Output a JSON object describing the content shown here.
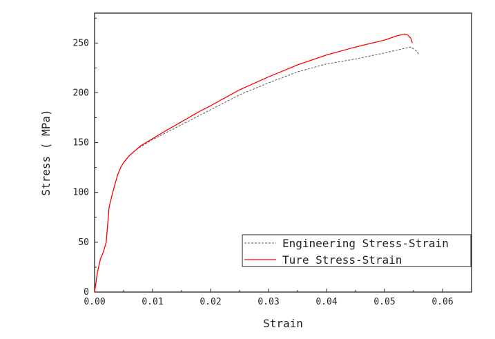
{
  "chart_data": {
    "type": "line",
    "xlabel": "Strain",
    "ylabel": "Stress ( MPa)",
    "xlim": [
      0,
      0.065
    ],
    "ylim": [
      0,
      280
    ],
    "xticks": [
      "0.00",
      "0.01",
      "0.02",
      "0.03",
      "0.04",
      "0.05",
      "0.06"
    ],
    "yticks": [
      "0",
      "50",
      "100",
      "150",
      "200",
      "250"
    ],
    "grid": false,
    "legend_position": "bottom-right",
    "series": [
      {
        "name": "Engineering Stress-Strain",
        "color": "#555555",
        "style": "dashed",
        "x": [
          0,
          0.0005,
          0.001,
          0.0015,
          0.002,
          0.0025,
          0.003,
          0.0035,
          0.004,
          0.0045,
          0.005,
          0.006,
          0.007,
          0.008,
          0.01,
          0.012,
          0.015,
          0.018,
          0.02,
          0.025,
          0.03,
          0.035,
          0.04,
          0.045,
          0.05,
          0.053,
          0.0545,
          0.0555,
          0.056
        ],
        "y": [
          0,
          20,
          33,
          40,
          50,
          85,
          97,
          108,
          118,
          125,
          130,
          137,
          142,
          146,
          153,
          159,
          168,
          177,
          183,
          198,
          210,
          221,
          229,
          234,
          240,
          244,
          246,
          242,
          238
        ]
      },
      {
        "name": "Ture Stress-Strain",
        "color": "#ff0000",
        "style": "solid",
        "x": [
          0,
          0.0005,
          0.001,
          0.0015,
          0.002,
          0.0025,
          0.003,
          0.0035,
          0.004,
          0.0045,
          0.005,
          0.006,
          0.007,
          0.008,
          0.01,
          0.012,
          0.015,
          0.018,
          0.02,
          0.025,
          0.03,
          0.035,
          0.04,
          0.045,
          0.05,
          0.052,
          0.0535,
          0.054,
          0.0545,
          0.0548
        ],
        "y": [
          0,
          20,
          33,
          40,
          50,
          85,
          97,
          108,
          118,
          125,
          130,
          137,
          142,
          147,
          154,
          161,
          171,
          181,
          187,
          203,
          216,
          228,
          238,
          246,
          253,
          257,
          259,
          258,
          255,
          250
        ]
      }
    ]
  }
}
